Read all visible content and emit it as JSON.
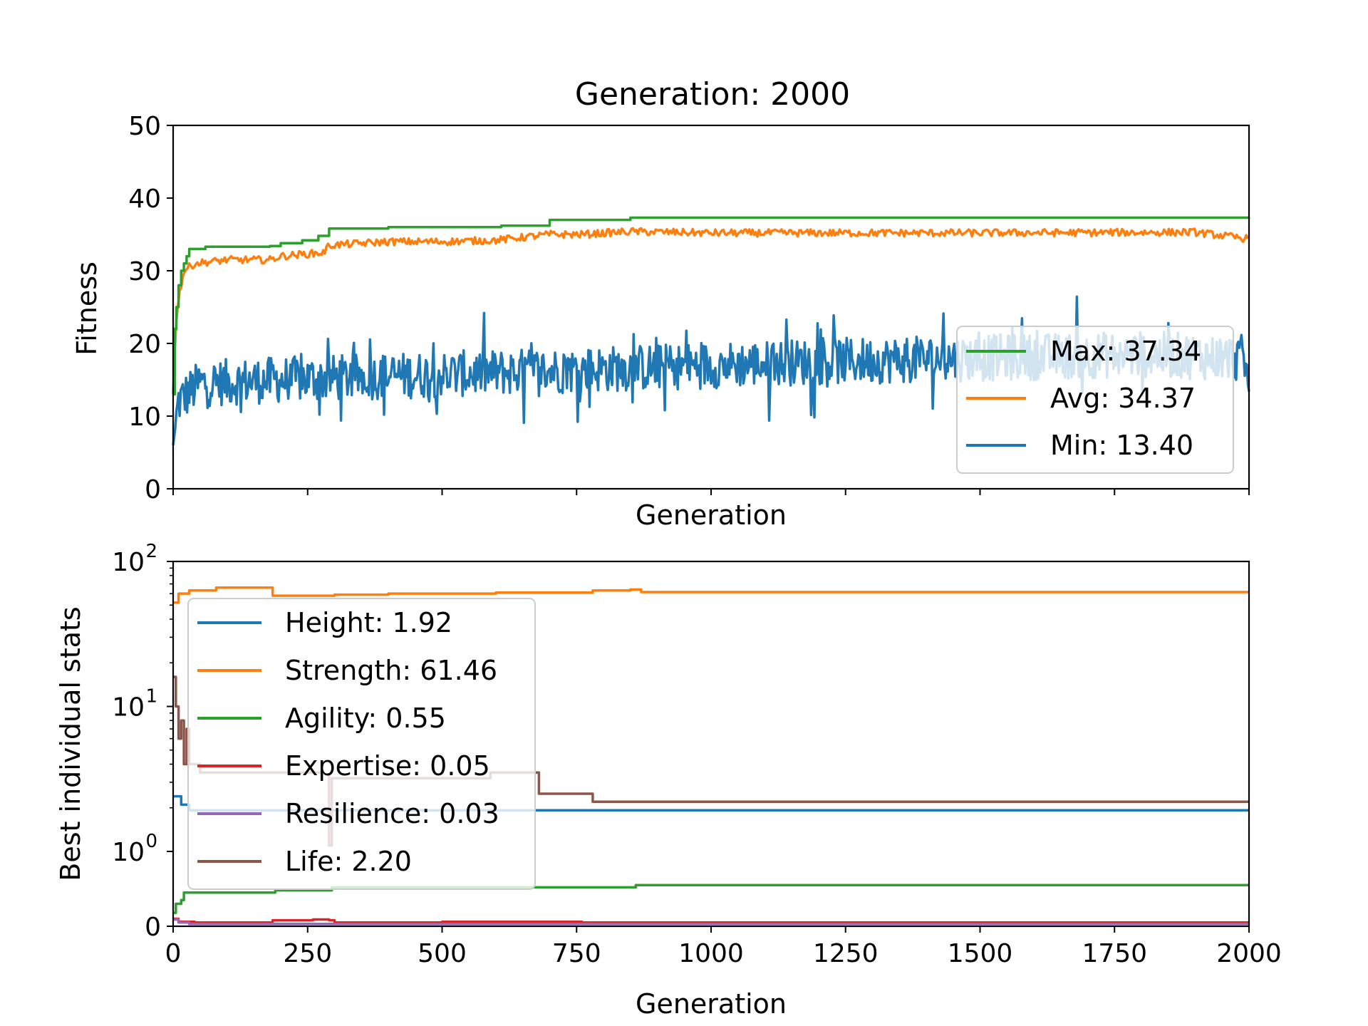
{
  "chart_data": [
    {
      "type": "line",
      "title": "Generation: 2000",
      "xlabel": "Generation",
      "ylabel": "Fitness",
      "xlim": [
        0,
        2000
      ],
      "ylim": [
        0,
        50
      ],
      "yticks": [
        0,
        10,
        20,
        30,
        40,
        50
      ],
      "xticks": [
        0,
        250,
        500,
        750,
        1000,
        1250,
        1500,
        1750,
        2000
      ],
      "show_x_tick_labels": false,
      "grid": false,
      "legend_position": "lower-right",
      "series": [
        {
          "name": "Max: 37.34",
          "color": "#2ca02c",
          "style": "step",
          "points": [
            [
              0,
              13
            ],
            [
              3,
              22
            ],
            [
              6,
              25
            ],
            [
              10,
              28
            ],
            [
              15,
              30
            ],
            [
              20,
              31
            ],
            [
              25,
              32
            ],
            [
              30,
              33
            ],
            [
              60,
              33.3
            ],
            [
              180,
              33.4
            ],
            [
              200,
              33.8
            ],
            [
              240,
              34.2
            ],
            [
              270,
              34.8
            ],
            [
              290,
              35.8
            ],
            [
              400,
              36
            ],
            [
              610,
              36.2
            ],
            [
              700,
              37
            ],
            [
              850,
              37.3
            ],
            [
              2000,
              37.34
            ]
          ]
        },
        {
          "name": "Avg: 34.37",
          "color": "#ff7f0e",
          "style": "noisy",
          "points": [
            [
              0,
              13
            ],
            [
              5,
              23
            ],
            [
              12,
              27
            ],
            [
              20,
              30
            ],
            [
              40,
              31
            ],
            [
              100,
              31.5
            ],
            [
              180,
              31.5
            ],
            [
              200,
              32
            ],
            [
              280,
              32.5
            ],
            [
              290,
              33.5
            ],
            [
              400,
              34
            ],
            [
              500,
              34
            ],
            [
              600,
              34.2
            ],
            [
              700,
              35
            ],
            [
              760,
              35
            ],
            [
              850,
              35.4
            ],
            [
              1000,
              35.2
            ],
            [
              1500,
              35.2
            ],
            [
              1900,
              35.3
            ],
            [
              2000,
              34.37
            ]
          ],
          "noise": 0.5
        },
        {
          "name": "Min: 13.40",
          "color": "#1f77b4",
          "style": "noisy",
          "points": [
            [
              0,
              6
            ],
            [
              10,
              12
            ],
            [
              50,
              14.5
            ],
            [
              200,
              15
            ],
            [
              400,
              15.5
            ],
            [
              600,
              16
            ],
            [
              800,
              16.5
            ],
            [
              1000,
              17
            ],
            [
              1200,
              17.5
            ],
            [
              1500,
              18
            ],
            [
              1800,
              18.5
            ],
            [
              1990,
              18
            ],
            [
              2000,
              13.4
            ]
          ],
          "noise": 3.2
        }
      ]
    },
    {
      "type": "line",
      "xlabel": "Generation",
      "ylabel": "Best individual stats",
      "yscale": "symlog",
      "xlim": [
        0,
        2000
      ],
      "ylim": [
        0,
        100
      ],
      "yticks": [
        {
          "base": "10",
          "exp": "0",
          "value": 1
        },
        {
          "base": "10",
          "exp": "1",
          "value": 10
        },
        {
          "base": "10",
          "exp": "2",
          "value": 100
        }
      ],
      "ytick_zero": "0",
      "xticks": [
        "0",
        "250",
        "500",
        "750",
        "1000",
        "1250",
        "1500",
        "1750",
        "2000"
      ],
      "grid": false,
      "legend_position": "upper-left",
      "series": [
        {
          "name": "Height: 1.92",
          "color": "#1f77b4",
          "points": [
            [
              0,
              2.4
            ],
            [
              15,
              2.1
            ],
            [
              30,
              1.92
            ],
            [
              2000,
              1.92
            ]
          ]
        },
        {
          "name": "Strength: 61.46",
          "color": "#ff7f0e",
          "points": [
            [
              0,
              52
            ],
            [
              10,
              60
            ],
            [
              30,
              63
            ],
            [
              80,
              66
            ],
            [
              185,
              66
            ],
            [
              185,
              58
            ],
            [
              300,
              59
            ],
            [
              400,
              60
            ],
            [
              600,
              61
            ],
            [
              760,
              61
            ],
            [
              780,
              63
            ],
            [
              850,
              64
            ],
            [
              870,
              61.46
            ],
            [
              2000,
              61.46
            ]
          ]
        },
        {
          "name": "Agility: 0.55",
          "color": "#2ca02c",
          "points": [
            [
              0,
              0.18
            ],
            [
              5,
              0.3
            ],
            [
              15,
              0.35
            ],
            [
              20,
              0.45
            ],
            [
              100,
              0.45
            ],
            [
              185,
              0.45
            ],
            [
              190,
              0.48
            ],
            [
              290,
              0.48
            ],
            [
              295,
              0.52
            ],
            [
              850,
              0.52
            ],
            [
              860,
              0.55
            ],
            [
              2000,
              0.55
            ]
          ]
        },
        {
          "name": "Expertise: 0.05",
          "color": "#d62728",
          "points": [
            [
              0,
              0.1
            ],
            [
              10,
              0.06
            ],
            [
              40,
              0.05
            ],
            [
              180,
              0.05
            ],
            [
              185,
              0.08
            ],
            [
              260,
              0.09
            ],
            [
              290,
              0.08
            ],
            [
              300,
              0.05
            ],
            [
              500,
              0.06
            ],
            [
              760,
              0.05
            ],
            [
              2000,
              0.05
            ]
          ]
        },
        {
          "name": "Resilience: 0.03",
          "color": "#9467bd",
          "points": [
            [
              0,
              0.09
            ],
            [
              10,
              0.05
            ],
            [
              30,
              0.03
            ],
            [
              2000,
              0.03
            ]
          ]
        },
        {
          "name": "Life: 2.20",
          "color": "#8c564b",
          "points": [
            [
              0,
              16
            ],
            [
              5,
              10
            ],
            [
              10,
              6
            ],
            [
              15,
              8
            ],
            [
              20,
              4
            ],
            [
              25,
              7
            ],
            [
              30,
              4
            ],
            [
              50,
              3.5
            ],
            [
              185,
              3.5
            ],
            [
              280,
              3.4
            ],
            [
              290,
              1.1
            ],
            [
              295,
              3.2
            ],
            [
              580,
              3.2
            ],
            [
              590,
              3.5
            ],
            [
              670,
              3.5
            ],
            [
              680,
              2.5
            ],
            [
              770,
              2.5
            ],
            [
              780,
              2.2
            ],
            [
              2000,
              2.2
            ]
          ]
        }
      ]
    }
  ]
}
